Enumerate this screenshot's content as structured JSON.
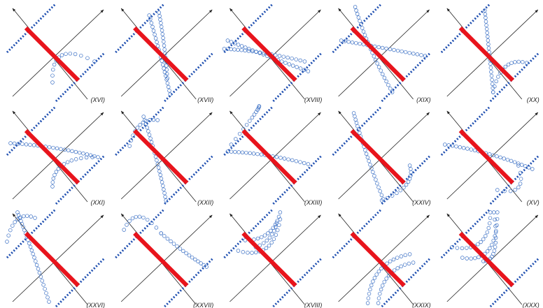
{
  "panels": [
    {
      "label": "(XVI)"
    },
    {
      "label": "(XVII)"
    },
    {
      "label": "(XVIII)"
    },
    {
      "label": "(XIX)"
    },
    {
      "label": "(XX)"
    },
    {
      "label": "(XXI)"
    },
    {
      "label": "(XXII)"
    },
    {
      "label": "(XXIII)"
    },
    {
      "label": "(XXIV)"
    },
    {
      "label": "(XV)"
    },
    {
      "label": "(XXVI)"
    },
    {
      "label": "(XXVII)"
    },
    {
      "label": "(XVIII)"
    },
    {
      "label": "(XXIX)"
    },
    {
      "label": "(XXX)"
    }
  ]
}
